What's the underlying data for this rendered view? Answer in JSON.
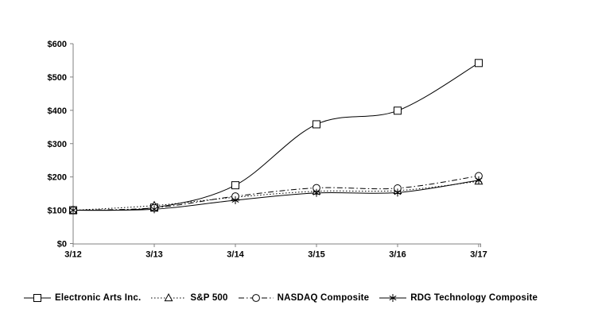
{
  "chart_data": {
    "type": "line",
    "title": "",
    "xlabel": "",
    "ylabel": "",
    "x_categories": [
      "3/12",
      "3/13",
      "3/14",
      "3/15",
      "3/16",
      "3/17"
    ],
    "y_tick_labels": [
      "$0",
      "$100",
      "$200",
      "$300",
      "$400",
      "$500",
      "$600"
    ],
    "y_tick_values": [
      0,
      100,
      200,
      300,
      400,
      500,
      600
    ],
    "ylim": [
      0,
      600
    ],
    "grid": false,
    "legend_position": "bottom",
    "colors": {
      "line": "#000000",
      "marker_fill": "#ffffff",
      "background": "#ffffff"
    },
    "series": [
      {
        "name": "Electronic Arts Inc.",
        "marker": "square",
        "line_style": "solid",
        "values": [
          100,
          108,
          175,
          358,
          399,
          542
        ]
      },
      {
        "name": "S&P 500",
        "marker": "triangle",
        "line_style": "dotted",
        "values": [
          100,
          114,
          139,
          157,
          159,
          187
        ]
      },
      {
        "name": "NASDAQ Composite",
        "marker": "circle",
        "line_style": "dashdot",
        "values": [
          100,
          107,
          142,
          167,
          166,
          203
        ]
      },
      {
        "name": "RDG Technology Composite",
        "marker": "asterisk",
        "line_style": "solid",
        "values": [
          100,
          103,
          130,
          152,
          153,
          190
        ]
      }
    ]
  }
}
